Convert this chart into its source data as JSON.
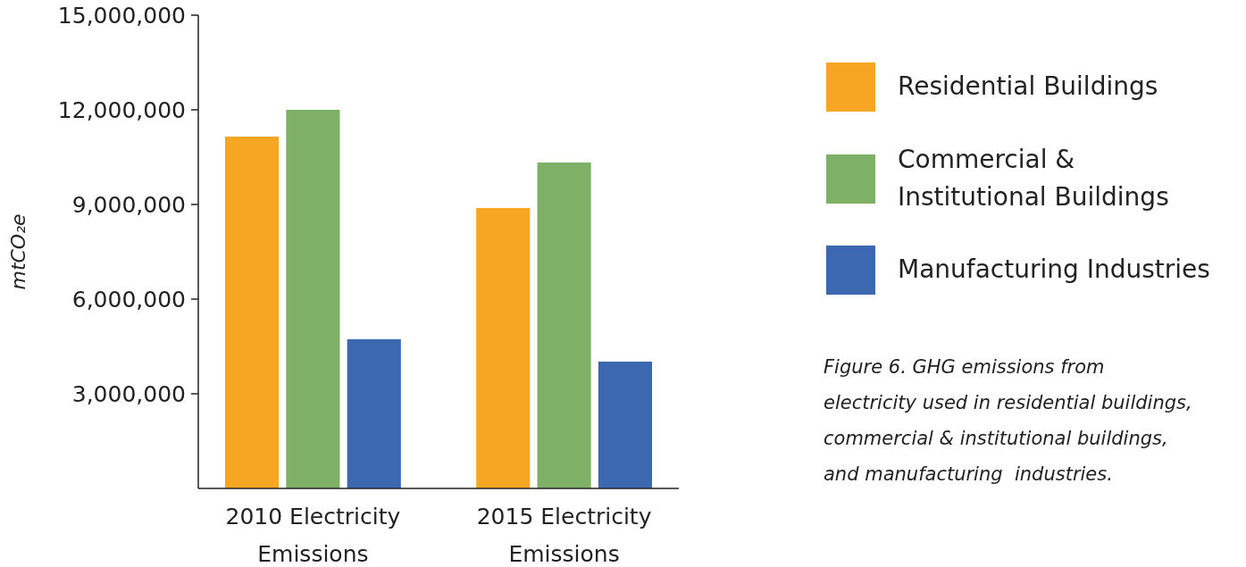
{
  "chart_data": {
    "type": "bar",
    "ylabel": "mtCO₂e",
    "categories": [
      "2010 Electricity\nEmissions",
      "2015 Electricity\nEmissions"
    ],
    "series": [
      {
        "name": "Residential Buildings",
        "color": "#f6a623",
        "values": [
          11150000,
          8890000
        ]
      },
      {
        "name": "Commercial &\nInstitutional Buildings",
        "color": "#7eb165",
        "values": [
          12000000,
          10330000
        ]
      },
      {
        "name": "Manufacturing Industries",
        "color": "#3c67b1",
        "values": [
          4730000,
          4020000
        ]
      }
    ],
    "ylim": [
      0,
      15000000
    ],
    "yticks": [
      {
        "value": 3000000,
        "label": "3,000,000"
      },
      {
        "value": 6000000,
        "label": "6,000,000"
      },
      {
        "value": 9000000,
        "label": "9,000,000"
      },
      {
        "value": 12000000,
        "label": "12,000,000"
      },
      {
        "value": 15000000,
        "label": "15,000,000"
      }
    ],
    "legend": "right",
    "annotations": [
      "Figure 6. GHG emissions from\nelectricity used in residential buildings,\ncommercial & institutional buildings,\nand manufacturing  industries."
    ]
  }
}
